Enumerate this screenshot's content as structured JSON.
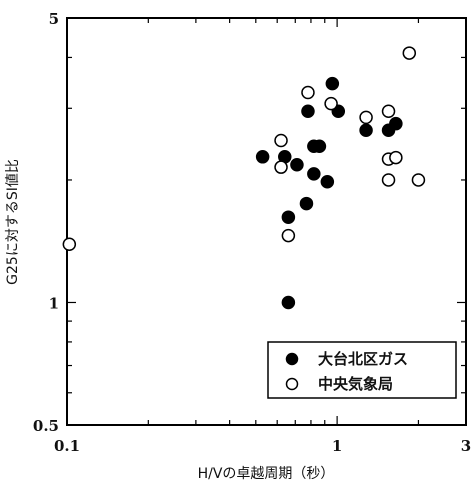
{
  "chart_data": {
    "type": "scatter",
    "xlabel": "H/Vの卓越周期（秒）",
    "ylabel": "G25に対するSI値比",
    "xscale": "log",
    "yscale": "log",
    "xlim": [
      0.1,
      3
    ],
    "ylim": [
      0.5,
      5
    ],
    "xticks": [
      {
        "value": 0.1,
        "label": "0.1"
      },
      {
        "value": 1,
        "label": "1"
      },
      {
        "value": 3,
        "label": "3"
      }
    ],
    "yticks": [
      {
        "value": 0.5,
        "label": "0.5"
      },
      {
        "value": 1,
        "label": "1"
      },
      {
        "value": 5,
        "label": "5"
      }
    ],
    "legend_position": "bottom-right",
    "series": [
      {
        "name": "大台北区ガス",
        "marker": "filled-circle",
        "color": "#000000",
        "points": [
          [
            0.53,
            2.28
          ],
          [
            0.64,
            2.28
          ],
          [
            0.71,
            2.18
          ],
          [
            0.66,
            1.62
          ],
          [
            0.77,
            1.75
          ],
          [
            0.82,
            2.42
          ],
          [
            0.86,
            2.42
          ],
          [
            0.78,
            2.95
          ],
          [
            0.82,
            2.07
          ],
          [
            0.92,
            1.98
          ],
          [
            0.96,
            3.45
          ],
          [
            1.01,
            2.95
          ],
          [
            0.66,
            1.0
          ],
          [
            1.28,
            2.65
          ],
          [
            1.55,
            2.65
          ],
          [
            1.65,
            2.75
          ]
        ]
      },
      {
        "name": "中央気象局",
        "marker": "open-circle",
        "color": "#000000",
        "points": [
          [
            0.102,
            1.39
          ],
          [
            0.62,
            2.5
          ],
          [
            0.62,
            2.15
          ],
          [
            0.66,
            1.46
          ],
          [
            0.78,
            3.28
          ],
          [
            0.95,
            3.08
          ],
          [
            1.28,
            2.85
          ],
          [
            1.55,
            2.95
          ],
          [
            1.55,
            2.25
          ],
          [
            1.55,
            2.0
          ],
          [
            1.65,
            2.27
          ],
          [
            1.85,
            4.1
          ],
          [
            2.0,
            2.0
          ]
        ]
      }
    ]
  }
}
